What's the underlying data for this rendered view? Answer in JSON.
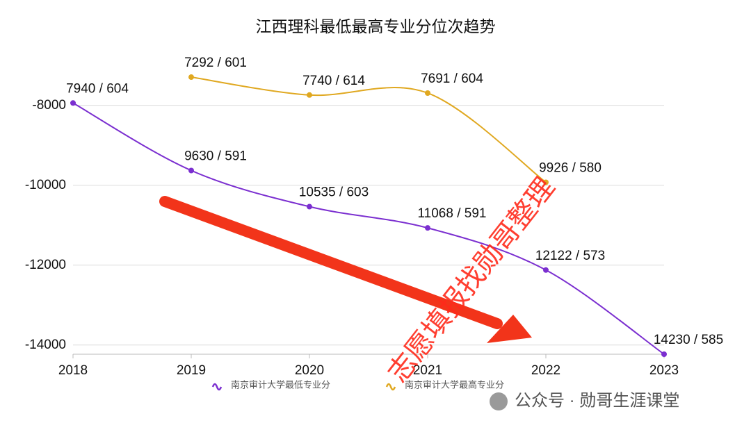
{
  "chart_data": {
    "type": "line",
    "title": "江西理科最低最高专业分位次趋势",
    "categories": [
      "2018",
      "2019",
      "2020",
      "2021",
      "2022",
      "2023"
    ],
    "series": [
      {
        "name": "南京审计大学最低专业分",
        "color": "#7b2fd0",
        "values": [
          -7940,
          -9630,
          -10535,
          -11068,
          -12122,
          -14230
        ],
        "value_labels": [
          "7940 / 604",
          "9630 / 591",
          "10535 / 603",
          "11068 / 591",
          "12122 / 573",
          "14230 / 585"
        ]
      },
      {
        "name": "南京审计大学最高专业分",
        "color": "#e0a820",
        "values": [
          null,
          -7292,
          -7740,
          -7691,
          -9926,
          null
        ],
        "value_labels": [
          null,
          "7292 / 601",
          "7740 / 614",
          "7691 / 604",
          "9926 / 580",
          null
        ]
      }
    ],
    "ylim": [
      -14230,
      -6500
    ],
    "yticks": [
      -8000,
      -10000,
      -12000,
      -14000
    ],
    "grid": true,
    "annotations": [
      "志愿填报找勋哥整理",
      "公众号 · 勋哥生涯课堂"
    ]
  }
}
